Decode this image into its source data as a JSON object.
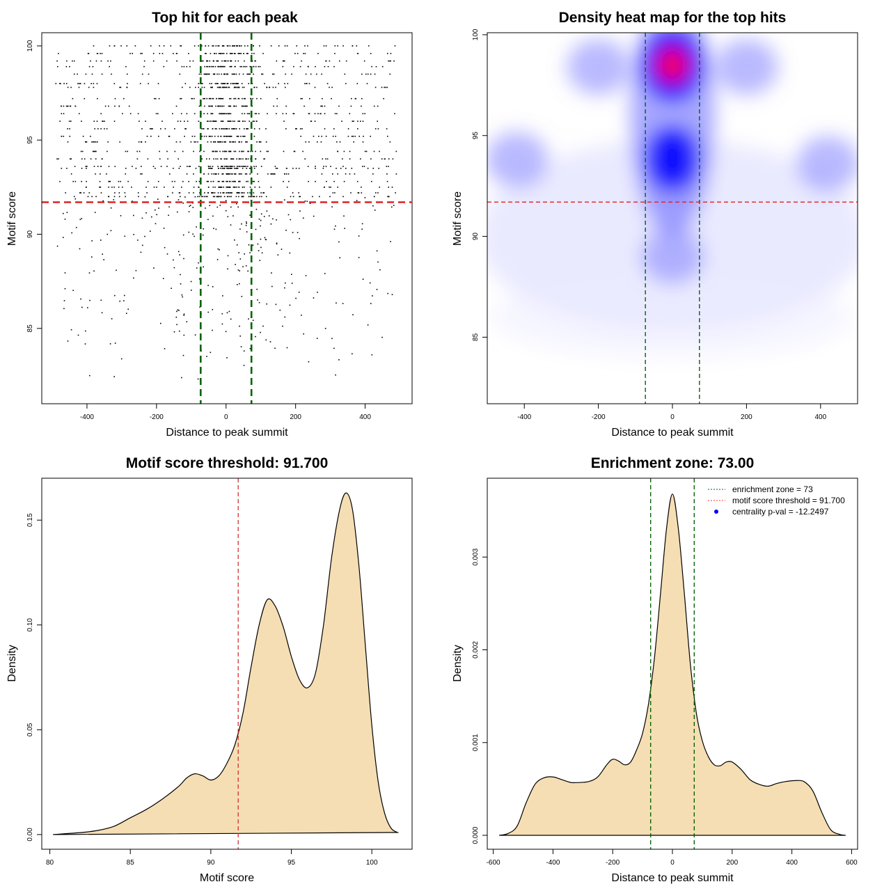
{
  "chart_data": [
    {
      "type": "scatter",
      "title": "Top hit for each peak",
      "xlabel": "Distance to peak summit",
      "ylabel": "Motif score",
      "xlim": [
        -530,
        535
      ],
      "ylim": [
        81,
        100.7
      ],
      "x_ticks": [
        "-400",
        "-200",
        "0",
        "200",
        "400"
      ],
      "y_ticks": [
        "85",
        "90",
        "95",
        "100"
      ],
      "score_levels": [
        100,
        99.6,
        99.2,
        98.9,
        98.5,
        98.0,
        97.8,
        97.2,
        96.8,
        96.4,
        96.0,
        95.6,
        95.2,
        94.9,
        94.4,
        94.0,
        93.6,
        93.5,
        93.2,
        92.8,
        92.5,
        92.2,
        92.0
      ],
      "vlines": [
        -73,
        73
      ],
      "hline": 91.7,
      "vline_color": "#006400",
      "hline_color": "#dd2222"
    },
    {
      "type": "heatmap",
      "title": "Density heat map for the top hits",
      "xlabel": "Distance to peak summit",
      "ylabel": "Motif score",
      "xlim": [
        -500,
        500
      ],
      "ylim": [
        81.7,
        100.1
      ],
      "x_ticks": [
        "-400",
        "-200",
        "0",
        "200",
        "400"
      ],
      "y_ticks": [
        "85",
        "90",
        "95",
        "100"
      ],
      "hotspots": [
        {
          "x": 0,
          "y": 98.5,
          "intensity": 1.0
        },
        {
          "x": 0,
          "y": 93.8,
          "intensity": 0.8
        },
        {
          "x": -200,
          "y": 98.4,
          "intensity": 0.3
        },
        {
          "x": 200,
          "y": 98.4,
          "intensity": 0.3
        },
        {
          "x": -420,
          "y": 93.8,
          "intensity": 0.25
        },
        {
          "x": 420,
          "y": 93.6,
          "intensity": 0.25
        },
        {
          "x": 0,
          "y": 89,
          "intensity": 0.2
        }
      ],
      "vlines": [
        -73,
        73
      ],
      "hline": 91.7,
      "colors": [
        "#ffffff",
        "#0000ff",
        "#ff0000"
      ]
    },
    {
      "type": "area",
      "title": "Motif score threshold: 91.700",
      "xlabel": "Motif score",
      "ylabel": "Density",
      "xlim": [
        79.5,
        102.5
      ],
      "ylim": [
        -0.007,
        0.17
      ],
      "x_ticks": [
        "80",
        "85",
        "90",
        "95",
        "100"
      ],
      "y_ticks": [
        "0.00",
        "0.05",
        "0.10",
        "0.15"
      ],
      "x": [
        80.2,
        82,
        83,
        84,
        85,
        86,
        87,
        88,
        88.5,
        89,
        89.5,
        90,
        90.5,
        91,
        91.5,
        92,
        92.5,
        93,
        93.5,
        94,
        94.5,
        95,
        95.5,
        96,
        96.5,
        97,
        97.5,
        98,
        98.4,
        98.8,
        99.2,
        99.6,
        100,
        100.4,
        100.8,
        101.2,
        101.6
      ],
      "values": [
        0,
        0.001,
        0.002,
        0.004,
        0.008,
        0.012,
        0.017,
        0.023,
        0.027,
        0.029,
        0.028,
        0.026,
        0.028,
        0.034,
        0.043,
        0.058,
        0.08,
        0.1,
        0.112,
        0.109,
        0.099,
        0.085,
        0.074,
        0.07,
        0.077,
        0.1,
        0.132,
        0.155,
        0.163,
        0.155,
        0.128,
        0.09,
        0.052,
        0.025,
        0.01,
        0.003,
        0.001
      ],
      "vline": 91.7,
      "fill": "#f5deb3",
      "vline_color": "#cc2222"
    },
    {
      "type": "area",
      "title": "Enrichment zone: 73.00",
      "xlabel": "Distance to peak summit",
      "ylabel": "Density",
      "xlim": [
        -620,
        620
      ],
      "ylim": [
        -0.00015,
        0.00385
      ],
      "x_ticks": [
        "-600",
        "-400",
        "-200",
        "0",
        "200",
        "400",
        "600"
      ],
      "y_ticks": [
        "0.000",
        "0.001",
        "0.002",
        "0.003"
      ],
      "x": [
        -580,
        -550,
        -520,
        -490,
        -460,
        -430,
        -400,
        -370,
        -340,
        -310,
        -280,
        -250,
        -220,
        -200,
        -180,
        -160,
        -140,
        -120,
        -100,
        -80,
        -60,
        -40,
        -20,
        0,
        20,
        40,
        60,
        80,
        100,
        120,
        140,
        160,
        180,
        200,
        230,
        260,
        290,
        320,
        350,
        380,
        410,
        440,
        470,
        500,
        530,
        560,
        580
      ],
      "values": [
        0,
        2e-05,
        0.0001,
        0.00035,
        0.00055,
        0.00062,
        0.00063,
        0.0006,
        0.00057,
        0.00057,
        0.00058,
        0.00063,
        0.00076,
        0.00082,
        0.0008,
        0.00076,
        0.00079,
        0.00092,
        0.0011,
        0.00142,
        0.00192,
        0.0026,
        0.0033,
        0.00368,
        0.0033,
        0.0026,
        0.00185,
        0.00132,
        0.00102,
        0.00085,
        0.00076,
        0.00075,
        0.00079,
        0.00079,
        0.00071,
        0.0006,
        0.00055,
        0.00053,
        0.00056,
        0.00058,
        0.00059,
        0.00058,
        0.00048,
        0.00025,
        6e-05,
        1e-05,
        0
      ],
      "vlines": [
        -73,
        73
      ],
      "fill": "#f5deb3",
      "vline_color": "#006400",
      "legend": [
        {
          "label": "enrichment zone = 73",
          "color": "#006400",
          "style": "dotted-line"
        },
        {
          "label": "motif score threshold = 91.700",
          "color": "#ff3333",
          "style": "dotted-line"
        },
        {
          "label": "centrality p-val = -12.2497",
          "color": "#0000ff",
          "style": "point"
        }
      ],
      "legend_position": "top-right"
    }
  ]
}
